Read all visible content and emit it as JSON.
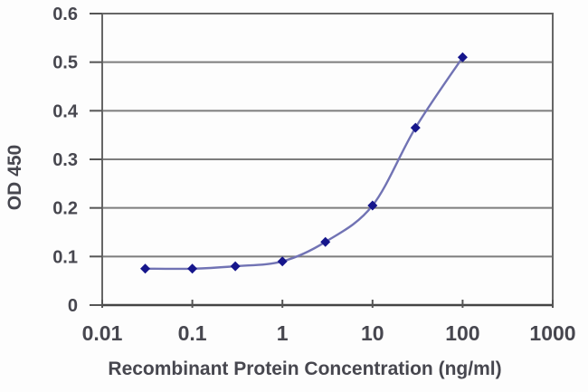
{
  "chart_data": {
    "type": "line",
    "title": "",
    "xlabel": "Recombinant Protein Concentration (ng/ml)",
    "ylabel": "OD 450",
    "x_scale": "log",
    "x": [
      0.03,
      0.1,
      0.3,
      1,
      3,
      10,
      30,
      100
    ],
    "y": [
      0.075,
      0.075,
      0.08,
      0.09,
      0.13,
      0.205,
      0.365,
      0.51
    ],
    "xlim": [
      0.01,
      1000
    ],
    "ylim": [
      0,
      0.6
    ],
    "x_tick_values": [
      0.01,
      0.1,
      1,
      10,
      100,
      1000
    ],
    "x_tick_labels": [
      "0.01",
      "0.1",
      "1",
      "10",
      "100",
      "1000"
    ],
    "y_tick_values": [
      0,
      0.1,
      0.2,
      0.3,
      0.4,
      0.5,
      0.6
    ],
    "y_tick_labels": [
      "0",
      "0.1",
      "0.2",
      "0.3",
      "0.4",
      "0.5",
      "0.6"
    ],
    "grid": "horizontal",
    "legend": "none",
    "marker": "diamond",
    "smooth": true,
    "colors": {
      "line": "#7173b4",
      "marker": "#16168c",
      "grid": "#7d7d7d",
      "frame": "#666666",
      "axis_bottom": "#454545",
      "tick": "#555555",
      "text": "#47474f"
    }
  }
}
